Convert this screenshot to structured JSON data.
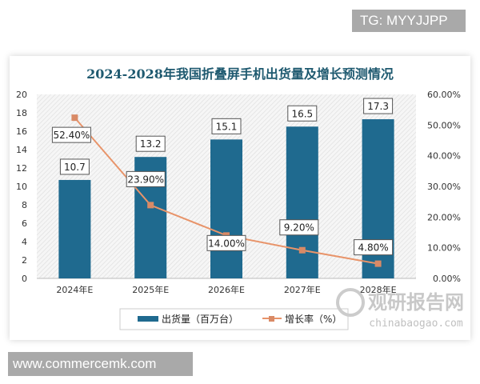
{
  "watermark_top": "TG: MYYJJPP",
  "watermark_bottom": "www.commercemk.com",
  "logo": {
    "cn": "观研报告网",
    "en": "chinabaogao.com"
  },
  "chart_data": {
    "type": "bar+line",
    "title": "2024-2028年我国折叠屏手机出货量及增长预测情况",
    "categories": [
      "2024年E",
      "2025年E",
      "2026年E",
      "2027年E",
      "2028年E"
    ],
    "series": [
      {
        "name": "出货量（百万台）",
        "type": "bar",
        "axis": "left",
        "values": [
          10.7,
          13.2,
          15.1,
          16.5,
          17.3
        ],
        "labels": [
          "10.7",
          "13.2",
          "15.1",
          "16.5",
          "17.3"
        ],
        "color": "#1f6a8f"
      },
      {
        "name": "增长率（%）",
        "type": "line",
        "axis": "right",
        "values": [
          52.4,
          23.9,
          14.0,
          9.2,
          4.8
        ],
        "labels": [
          "52.40%",
          "23.90%",
          "14.00%",
          "9.20%",
          "4.80%"
        ],
        "color": "#e8946a"
      }
    ],
    "left_axis": {
      "ylim": [
        0,
        20
      ],
      "ticks": [
        "0",
        "2",
        "4",
        "6",
        "8",
        "10",
        "12",
        "14",
        "16",
        "18",
        "20"
      ]
    },
    "right_axis": {
      "ylim": [
        0,
        60
      ],
      "ticks": [
        "0.00%",
        "10.00%",
        "20.00%",
        "30.00%",
        "40.00%",
        "50.00%",
        "60.00%"
      ]
    },
    "legend": "bottom",
    "grid": false
  }
}
